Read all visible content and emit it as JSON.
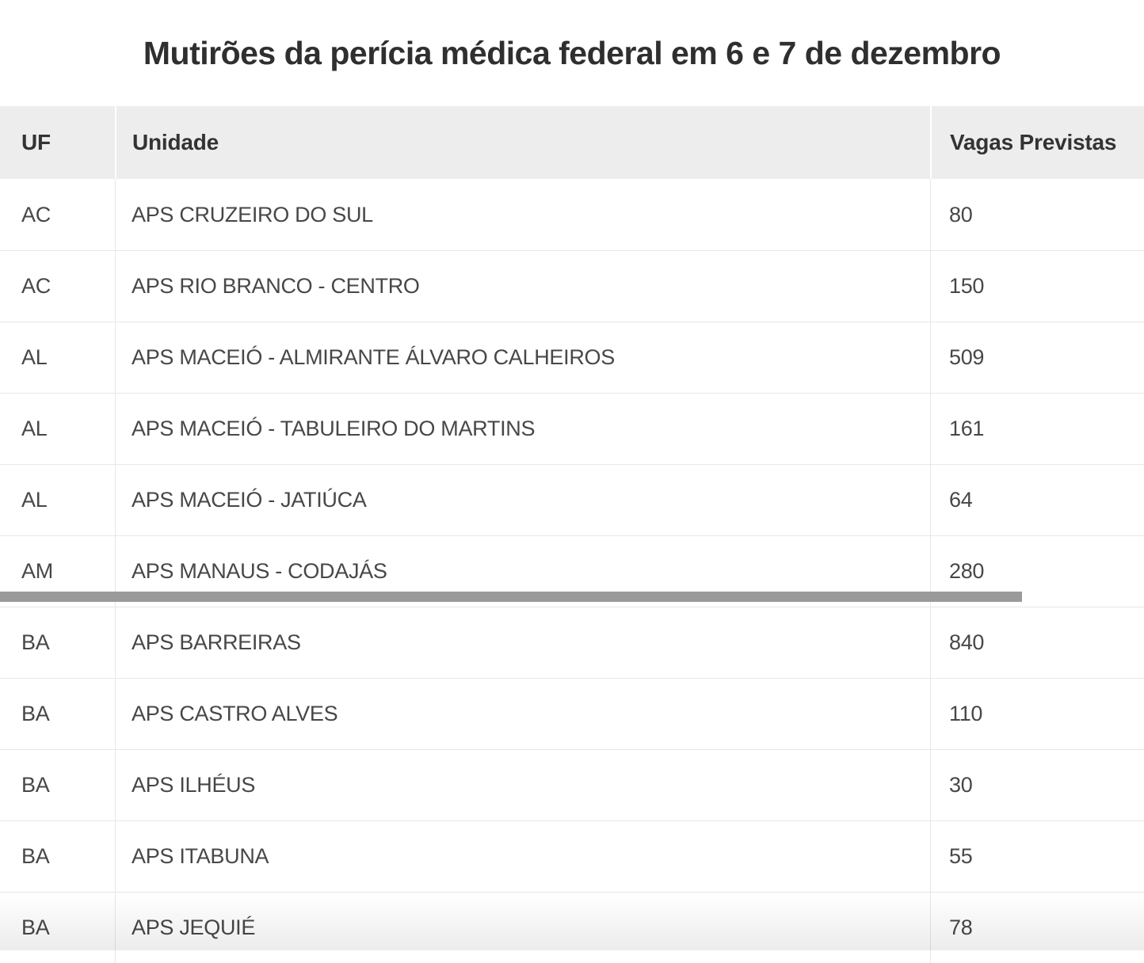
{
  "page": {
    "title": "Mutirões da perícia médica federal em 6 e 7 de dezembro"
  },
  "chart_data": {
    "type": "table",
    "title": "Mutirões da perícia médica federal em 6 e 7 de dezembro",
    "columns": [
      "UF",
      "Unidade",
      "Vagas Previstas"
    ],
    "rows": [
      [
        "AC",
        "APS CRUZEIRO DO SUL",
        "80"
      ],
      [
        "AC",
        "APS RIO BRANCO - CENTRO",
        "150"
      ],
      [
        "AL",
        "APS MACEIÓ - ALMIRANTE ÁLVARO CALHEIROS",
        "509"
      ],
      [
        "AL",
        "APS MACEIÓ - TABULEIRO DO MARTINS",
        "161"
      ],
      [
        "AL",
        "APS MACEIÓ - JATIÚCA",
        "64"
      ],
      [
        "AM",
        "APS MANAUS - CODAJÁS",
        "280"
      ],
      [
        "BA",
        "APS BARREIRAS",
        "840"
      ],
      [
        "BA",
        "APS CASTRO ALVES",
        "110"
      ],
      [
        "BA",
        "APS ILHÉUS",
        "30"
      ],
      [
        "BA",
        "APS ITABUNA",
        "55"
      ],
      [
        "BA",
        "APS JEQUIÉ",
        "78"
      ]
    ]
  },
  "scrollbar": {
    "orientation": "horizontal"
  },
  "colors": {
    "title": "#2f2f2f",
    "header_bg": "#ededed",
    "header_text": "#333333",
    "body_text": "#474747",
    "row_divider": "#e7e7e7",
    "scrollbar_thumb": "#9a9a9a"
  }
}
